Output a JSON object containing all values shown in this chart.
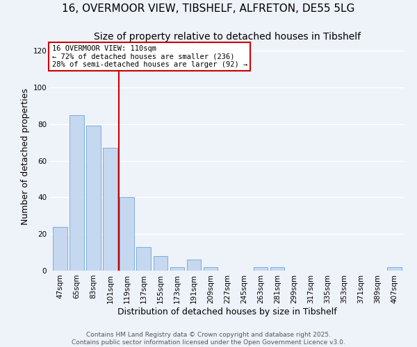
{
  "title": "16, OVERMOOR VIEW, TIBSHELF, ALFRETON, DE55 5LG",
  "subtitle": "Size of property relative to detached houses in Tibshelf",
  "xlabel": "Distribution of detached houses by size in Tibshelf",
  "ylabel": "Number of detached properties",
  "categories": [
    "47sqm",
    "65sqm",
    "83sqm",
    "101sqm",
    "119sqm",
    "137sqm",
    "155sqm",
    "173sqm",
    "191sqm",
    "209sqm",
    "227sqm",
    "245sqm",
    "263sqm",
    "281sqm",
    "299sqm",
    "317sqm",
    "335sqm",
    "353sqm",
    "371sqm",
    "389sqm",
    "407sqm"
  ],
  "values": [
    24,
    85,
    79,
    67,
    40,
    13,
    8,
    2,
    6,
    2,
    0,
    0,
    2,
    2,
    0,
    0,
    0,
    0,
    0,
    0,
    2
  ],
  "bar_color": "#c5d8f0",
  "bar_edgecolor": "#7aaedb",
  "vline_x": 3.5,
  "vline_color": "#cc0000",
  "ylim": [
    0,
    125
  ],
  "yticks": [
    0,
    20,
    40,
    60,
    80,
    100,
    120
  ],
  "annotation_title": "16 OVERMOOR VIEW: 110sqm",
  "annotation_line1": "← 72% of detached houses are smaller (236)",
  "annotation_line2": "28% of semi-detached houses are larger (92) →",
  "annotation_box_facecolor": "#ffffff",
  "annotation_box_edgecolor": "#cc0000",
  "footer1": "Contains HM Land Registry data © Crown copyright and database right 2025.",
  "footer2": "Contains public sector information licensed under the Open Government Licence v3.0.",
  "background_color": "#eef2f9",
  "grid_color": "#ffffff",
  "title_fontsize": 11,
  "subtitle_fontsize": 10,
  "axis_label_fontsize": 9,
  "tick_fontsize": 7.5,
  "footer_fontsize": 6.5
}
